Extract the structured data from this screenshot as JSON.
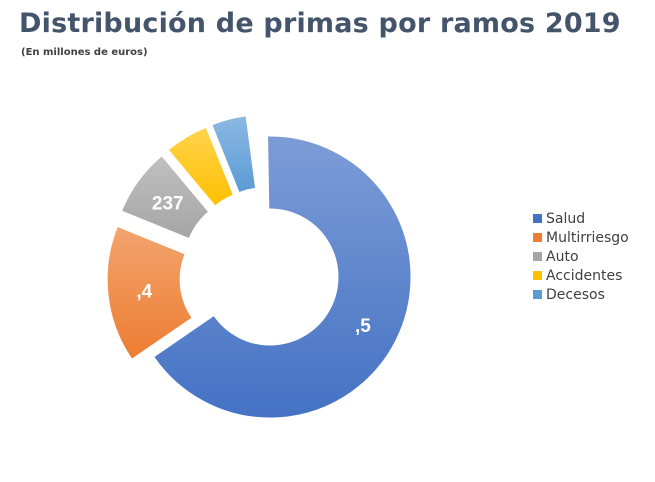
{
  "title": "Distribución de primas por ramos 2019",
  "subtitle": "(En millones de euros)",
  "chart_data": {
    "type": "donut",
    "title": "Distribución de primas por ramos 2019",
    "subtitle": "(En millones de euros)",
    "unit": "millones de euros",
    "slices": [
      {
        "name": "Salud",
        "share": 0.657,
        "label": ",5",
        "color": "#4472c4"
      },
      {
        "name": "Multirriesgo",
        "share": 0.157,
        "label": ",4",
        "color": "#ed7d31"
      },
      {
        "name": "Auto",
        "share": 0.078,
        "label": "237",
        "color": "#a5a5a5"
      },
      {
        "name": "Accidentes",
        "share": 0.05,
        "label": "",
        "color": "#ffc000"
      },
      {
        "name": "Decesos",
        "share": 0.04,
        "label": "",
        "color": "#5b9bd5"
      }
    ],
    "legend_position": "right"
  }
}
